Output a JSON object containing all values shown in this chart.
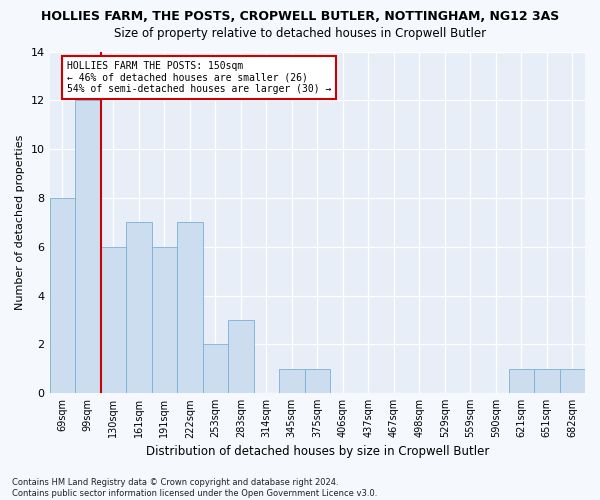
{
  "title": "HOLLIES FARM, THE POSTS, CROPWELL BUTLER, NOTTINGHAM, NG12 3AS",
  "subtitle": "Size of property relative to detached houses in Cropwell Butler",
  "xlabel": "Distribution of detached houses by size in Cropwell Butler",
  "ylabel": "Number of detached properties",
  "footer": "Contains HM Land Registry data © Crown copyright and database right 2024.\nContains public sector information licensed under the Open Government Licence v3.0.",
  "categories": [
    "69sqm",
    "99sqm",
    "130sqm",
    "161sqm",
    "191sqm",
    "222sqm",
    "253sqm",
    "283sqm",
    "314sqm",
    "345sqm",
    "375sqm",
    "406sqm",
    "437sqm",
    "467sqm",
    "498sqm",
    "529sqm",
    "559sqm",
    "590sqm",
    "621sqm",
    "651sqm",
    "682sqm"
  ],
  "values": [
    8,
    12,
    6,
    7,
    6,
    7,
    2,
    3,
    0,
    1,
    1,
    0,
    0,
    0,
    0,
    0,
    0,
    0,
    1,
    1,
    1
  ],
  "bar_color": "#ccddf0",
  "bar_edge_color": "#7aafd4",
  "vline_x_idx": 2,
  "vline_color": "#cc0000",
  "annotation_text": "HOLLIES FARM THE POSTS: 150sqm\n← 46% of detached houses are smaller (26)\n54% of semi-detached houses are larger (30) →",
  "annotation_box_color": "#ffffff",
  "annotation_box_edge_color": "#cc0000",
  "ylim": [
    0,
    14
  ],
  "yticks": [
    0,
    2,
    4,
    6,
    8,
    10,
    12,
    14
  ],
  "fig_bg_color": "#f5f8fd",
  "plot_bg_color": "#e8eef8",
  "title_fontsize": 9,
  "subtitle_fontsize": 8.5,
  "tick_fontsize": 7,
  "ylabel_fontsize": 8,
  "xlabel_fontsize": 8.5,
  "footer_fontsize": 6
}
